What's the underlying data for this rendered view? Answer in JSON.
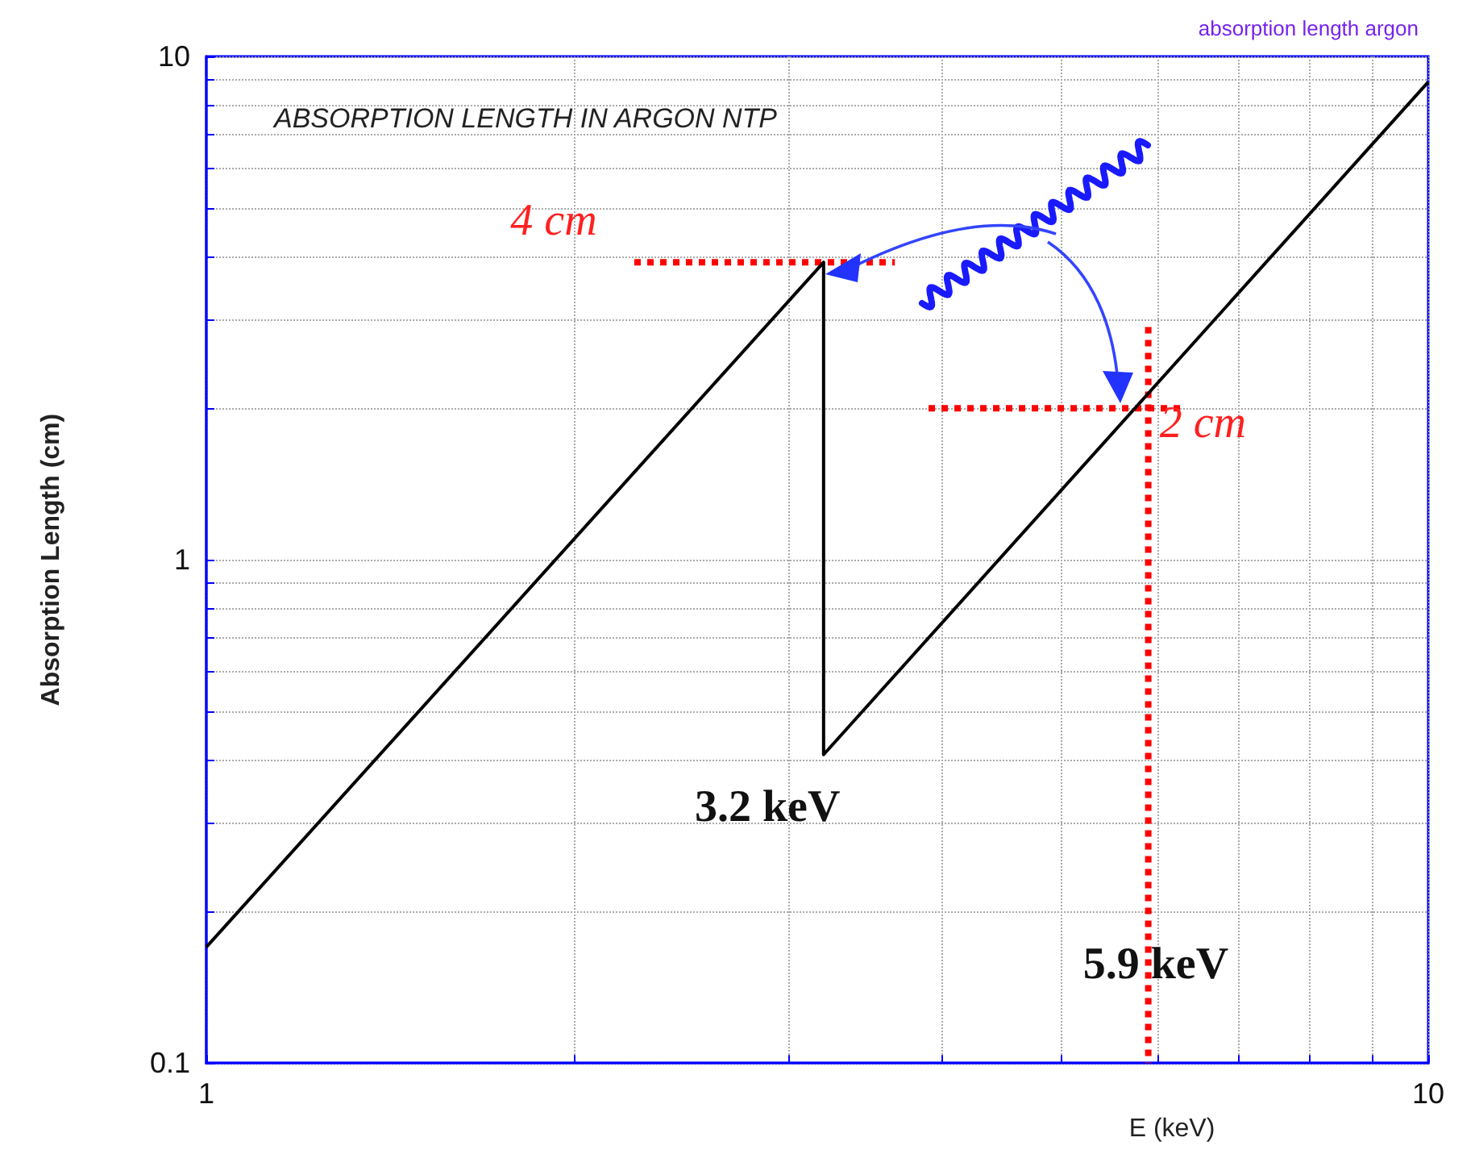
{
  "chart_data": {
    "type": "line",
    "title": "ABSORPTION LENGTH IN ARGON NTP",
    "subtitle": "absorption length argon",
    "xlabel": "E (keV)",
    "ylabel": "Absorption Length (cm)",
    "log": "xy",
    "grid": true,
    "marker": "none",
    "xlim": [
      1,
      10
    ],
    "ylim": [
      0.1,
      10
    ],
    "xticks": [
      1,
      {
        "value": 2,
        "label": null
      },
      {
        "value": 3,
        "label": null
      },
      {
        "value": 4,
        "label": null
      },
      {
        "value": 5,
        "label": null
      },
      {
        "value": 6,
        "label": null
      },
      {
        "value": 7,
        "label": null
      },
      {
        "value": 8,
        "label": null
      },
      {
        "value": 9,
        "label": null
      },
      10
    ],
    "yticks": [
      0.1,
      {
        "value": 0.2,
        "label": null
      },
      {
        "value": 0.3,
        "label": null
      },
      {
        "value": 0.4,
        "label": null
      },
      {
        "value": 0.5,
        "label": null
      },
      {
        "value": 0.6,
        "label": null
      },
      {
        "value": 0.7,
        "label": null
      },
      {
        "value": 0.8,
        "label": null
      },
      {
        "value": 0.9,
        "label": null
      },
      1,
      {
        "value": 2,
        "label": null
      },
      {
        "value": 3,
        "label": null
      },
      {
        "value": 4,
        "label": null
      },
      {
        "value": 5,
        "label": null
      },
      {
        "value": 6,
        "label": null
      },
      {
        "value": 7,
        "label": null
      },
      {
        "value": 8,
        "label": null
      },
      {
        "value": 9,
        "label": null
      },
      10
    ],
    "series": [
      {
        "color": "#000000",
        "line_style": "solid",
        "x": [
          1,
          3.2,
          3.2,
          10
        ],
        "values": [
          0.17,
          3.9,
          0.41,
          8.9
        ]
      },
      {
        "color": "#ff0000",
        "line_style": "dotted",
        "x": [
          2.24,
          3.66
        ],
        "values": [
          3.9,
          3.9
        ]
      },
      {
        "color": "#ff0000",
        "line_style": "dotted",
        "x": [
          3.9,
          6.3
        ],
        "values": [
          2,
          2
        ]
      },
      {
        "color": "#ff0000",
        "line_style": "dotted",
        "x": [
          5.9,
          5.9
        ],
        "values": [
          2.9,
          0.1
        ]
      }
    ],
    "annotations": [
      {
        "text": "4 cm",
        "x": 2.24,
        "y": 3.9
      },
      {
        "text": "2 cm",
        "x": 6.3,
        "y": 2
      },
      {
        "text": "3.2 keV",
        "x": 3.2,
        "y": 0.41
      },
      {
        "text": "5.9 keV",
        "x": 5.9,
        "y": 0.1
      }
    ]
  }
}
